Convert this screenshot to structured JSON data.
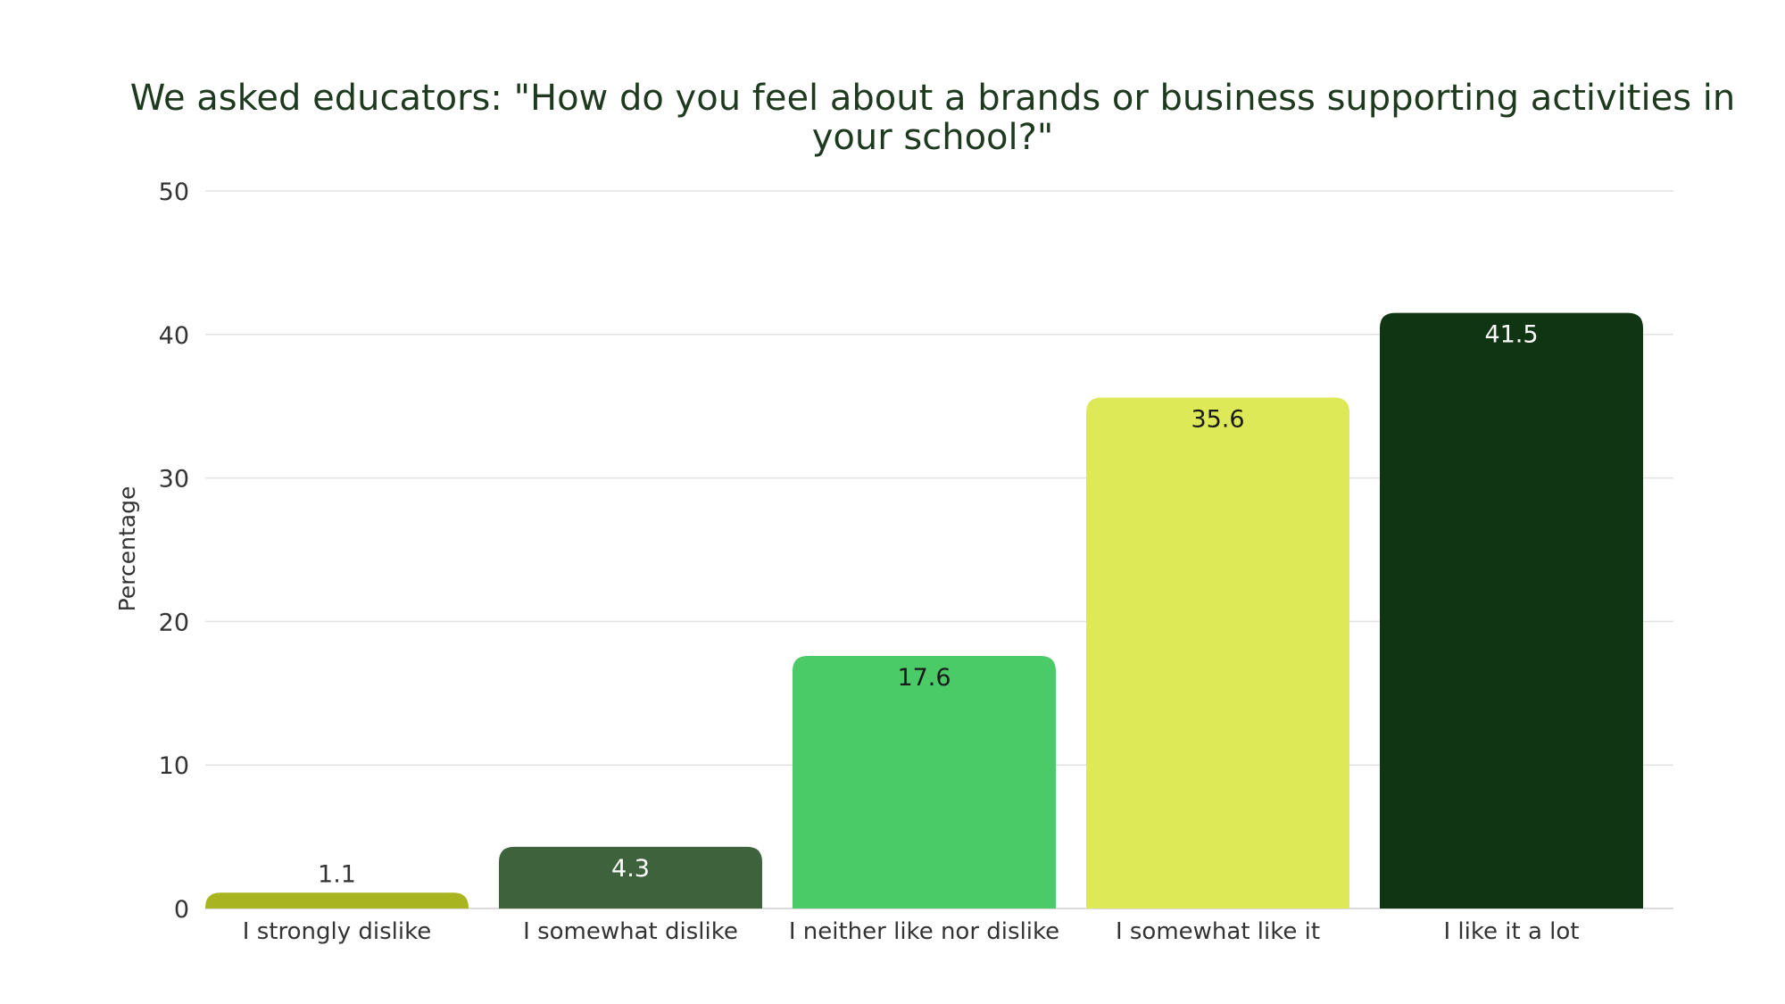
{
  "chart_data": {
    "type": "bar",
    "title_lines": [
      "We asked educators:  \"How do you feel about a brands or business supporting activities in",
      "your school?\""
    ],
    "ylabel": "Percentage",
    "xlabel": "",
    "ylim": [
      0,
      50
    ],
    "yticks": [
      0,
      10,
      20,
      30,
      40,
      50
    ],
    "grid": true,
    "legend": "none",
    "categories": [
      "I strongly dislike",
      "I somewhat dislike",
      "I neither like nor dislike",
      "I somewhat like it",
      "I like it a lot"
    ],
    "values": [
      1.1,
      4.3,
      17.6,
      35.6,
      41.5
    ],
    "data_labels": [
      "1.1",
      "4.3",
      "17.6",
      "35.6",
      "41.5"
    ],
    "colors": [
      "#a9b520",
      "#3e633c",
      "#4acb67",
      "#dde957",
      "#103512"
    ],
    "label_colors": [
      "#333333",
      "#ffffff",
      "#1a1a1a",
      "#1a1a1a",
      "#ffffff"
    ]
  }
}
